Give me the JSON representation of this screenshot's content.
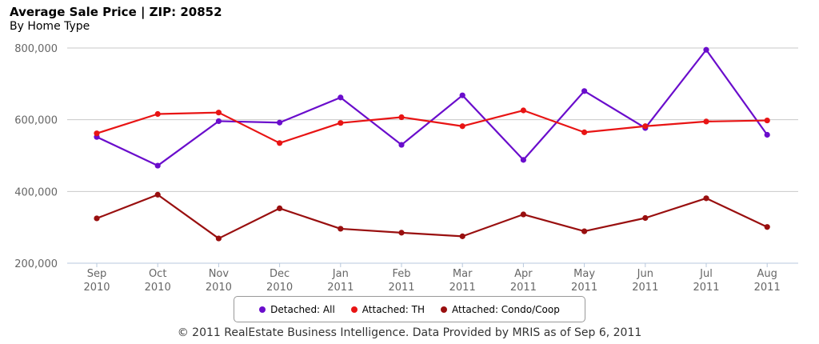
{
  "chart_data": {
    "type": "line",
    "title": "Average Sale Price | ZIP: 20852",
    "subtitle": "By Home Type",
    "categories": [
      "Sep 2010",
      "Oct 2010",
      "Nov 2010",
      "Dec 2010",
      "Jan 2011",
      "Feb 2011",
      "Mar 2011",
      "Apr 2011",
      "May 2011",
      "Jun 2011",
      "Jul 2011",
      "Aug 2011"
    ],
    "x_tick_lines": [
      [
        "Sep",
        "2010"
      ],
      [
        "Oct",
        "2010"
      ],
      [
        "Nov",
        "2010"
      ],
      [
        "Dec",
        "2010"
      ],
      [
        "Jan",
        "2011"
      ],
      [
        "Feb",
        "2011"
      ],
      [
        "Mar",
        "2011"
      ],
      [
        "Apr",
        "2011"
      ],
      [
        "May",
        "2011"
      ],
      [
        "Jun",
        "2011"
      ],
      [
        "Jul",
        "2011"
      ],
      [
        "Aug",
        "2011"
      ]
    ],
    "y_ticks": [
      200000,
      400000,
      600000,
      800000
    ],
    "y_tick_labels": [
      "200,000",
      "400,000",
      "600,000",
      "800,000"
    ],
    "ylim": [
      200000,
      800000
    ],
    "grid": true,
    "legend_position": "bottom",
    "series": [
      {
        "name": "Detached: All",
        "color": "#6a0dcc",
        "values": [
          552000,
          472000,
          596000,
          592000,
          662000,
          530000,
          668000,
          488000,
          680000,
          577000,
          795000,
          558000
        ]
      },
      {
        "name": "Attached: TH",
        "color": "#e81414",
        "values": [
          562000,
          616000,
          620000,
          535000,
          591000,
          607000,
          582000,
          626000,
          565000,
          582000,
          595000,
          598000
        ]
      },
      {
        "name": "Attached: Condo/Coop",
        "color": "#990f0f",
        "values": [
          325000,
          391000,
          269000,
          353000,
          296000,
          285000,
          275000,
          336000,
          289000,
          326000,
          381000,
          301000
        ]
      }
    ]
  },
  "footer": "© 2011 RealEstate Business Intelligence. Data Provided by MRIS as of Sep 6, 2011"
}
